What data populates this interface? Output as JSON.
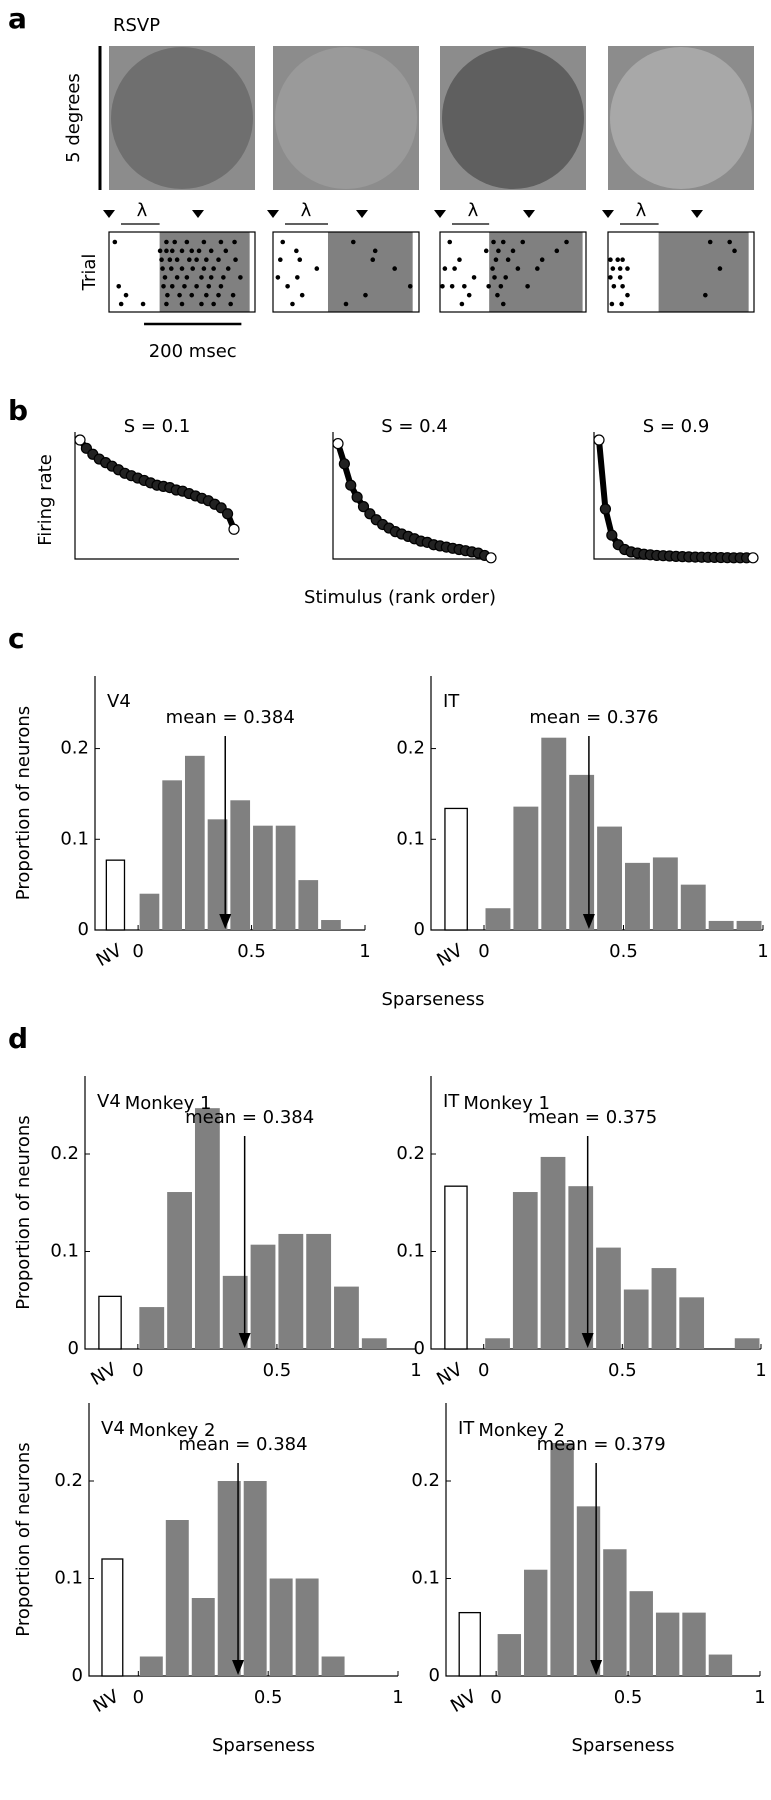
{
  "panel_labels": [
    "a",
    "b",
    "c",
    "d"
  ],
  "chart_data": [
    {
      "type": "raster",
      "title": "RSVP",
      "image_scale_label": "5 degrees",
      "ylabel": "Trial",
      "lambda_label": "λ",
      "scale_bar": 200,
      "scale_bar_label": "200 msec",
      "xlim": [
        0,
        300
      ],
      "rasters": [
        {
          "shade": [
            104,
            289
          ],
          "trials": [
            [
              12,
              118,
              135,
              160,
              195,
              230,
              258
            ],
            [
              105,
              118,
              130,
              150,
              170,
              185,
              210,
              240
            ],
            [
              108,
              125,
              140,
              165,
              180,
              200,
              225,
              260
            ],
            [
              110,
              128,
              150,
              172,
              195,
              215,
              245
            ],
            [
              115,
              140,
              160,
              190,
              210,
              235,
              270
            ],
            [
              20,
              112,
              130,
              155,
              180,
              205,
              230
            ],
            [
              35,
              120,
              145,
              170,
              200,
              225,
              255
            ],
            [
              25,
              70,
              118,
              150,
              190,
              215,
              250
            ]
          ]
        },
        {
          "shade": [
            113,
            287
          ],
          "trials": [
            [
              20,
              165
            ],
            [
              48,
              210
            ],
            [
              15,
              55,
              205
            ],
            [
              90,
              250
            ],
            [
              10,
              50
            ],
            [
              30,
              282
            ],
            [
              60,
              190
            ],
            [
              40,
              150
            ]
          ]
        },
        {
          "shade": [
            101,
            293
          ],
          "trials": [
            [
              20,
              110,
              130,
              170,
              260
            ],
            [
              95,
              120,
              150,
              240
            ],
            [
              40,
              115,
              140,
              210
            ],
            [
              10,
              30,
              108,
              160,
              200
            ],
            [
              70,
              112,
              135
            ],
            [
              5,
              25,
              50,
              100,
              125,
              180
            ],
            [
              60,
              118
            ],
            [
              45,
              130
            ]
          ]
        },
        {
          "shade": [
            104,
            289
          ],
          "trials": [
            [
              210,
              250
            ],
            [
              260
            ],
            [
              5,
              20,
              30
            ],
            [
              10,
              25,
              40,
              230
            ],
            [
              5,
              25
            ],
            [
              12,
              30
            ],
            [
              40,
              200
            ],
            [
              8,
              28
            ]
          ]
        }
      ]
    },
    {
      "type": "curves",
      "ylabel": "Firing rate",
      "xlabel": "Stimulus (rank order)",
      "ylim": [
        0,
        1
      ],
      "curves": [
        {
          "title": "S = 0.1",
          "values": [
            1.0,
            0.93,
            0.88,
            0.84,
            0.81,
            0.78,
            0.75,
            0.72,
            0.7,
            0.68,
            0.66,
            0.64,
            0.62,
            0.61,
            0.6,
            0.58,
            0.57,
            0.55,
            0.53,
            0.51,
            0.49,
            0.46,
            0.43,
            0.38,
            0.25
          ]
        },
        {
          "title": "S = 0.4",
          "values": [
            0.97,
            0.8,
            0.62,
            0.52,
            0.44,
            0.38,
            0.33,
            0.29,
            0.26,
            0.23,
            0.21,
            0.19,
            0.17,
            0.15,
            0.14,
            0.12,
            0.11,
            0.1,
            0.09,
            0.08,
            0.07,
            0.06,
            0.05,
            0.03,
            0.01
          ]
        },
        {
          "title": "S = 0.9",
          "values": [
            1.0,
            0.42,
            0.2,
            0.12,
            0.08,
            0.06,
            0.05,
            0.04,
            0.035,
            0.03,
            0.028,
            0.025,
            0.022,
            0.02,
            0.018,
            0.016,
            0.015,
            0.014,
            0.013,
            0.012,
            0.011,
            0.01,
            0.01,
            0.01,
            0.01
          ]
        }
      ]
    },
    {
      "type": "histogram",
      "title": "V4",
      "ylabel": "Proportion of neurons",
      "xlabel": "Sparseness",
      "color": "#808080",
      "bins": [
        0,
        0.1,
        0.2,
        0.3,
        0.4,
        0.5,
        0.6,
        0.7,
        0.8,
        0.9,
        1
      ],
      "values": [
        0.04,
        0.165,
        0.192,
        0.122,
        0.143,
        0.115,
        0.115,
        0.055,
        0.011,
        0
      ],
      "nv_value": 0.077,
      "nv_label": "NV",
      "mean": 0.384,
      "mean_label": "mean = 0.384",
      "xlim": [
        -0.19,
        1
      ],
      "ylim": [
        0,
        0.28
      ],
      "xticks": [
        0,
        0.5,
        1
      ],
      "yticks": [
        0,
        0.1,
        0.2
      ]
    },
    {
      "type": "histogram",
      "title": "IT",
      "color": "#808080",
      "bins": [
        0,
        0.1,
        0.2,
        0.3,
        0.4,
        0.5,
        0.6,
        0.7,
        0.8,
        0.9,
        1
      ],
      "values": [
        0.024,
        0.136,
        0.212,
        0.171,
        0.114,
        0.074,
        0.08,
        0.05,
        0.01,
        0.01
      ],
      "nv_value": 0.134,
      "nv_label": "NV",
      "mean": 0.376,
      "mean_label": "mean = 0.376",
      "xlim": [
        -0.19,
        1
      ],
      "ylim": [
        0,
        0.28
      ],
      "xticks": [
        0,
        0.5,
        1
      ],
      "yticks": [
        0,
        0.1,
        0.2
      ]
    },
    {
      "type": "histogram",
      "title": "V4",
      "subtitle": "Monkey 1",
      "ylabel": "Proportion of neurons",
      "color": "#808080",
      "bins": [
        0,
        0.1,
        0.2,
        0.3,
        0.4,
        0.5,
        0.6,
        0.7,
        0.8,
        0.9,
        1
      ],
      "values": [
        0.043,
        0.161,
        0.247,
        0.075,
        0.107,
        0.118,
        0.118,
        0.064,
        0.011,
        0
      ],
      "nv_value": 0.054,
      "nv_label": "NV",
      "mean": 0.384,
      "mean_label": "mean = 0.384",
      "xlim": [
        -0.19,
        1
      ],
      "ylim": [
        0,
        0.28
      ],
      "xticks": [
        0,
        0.5,
        1
      ],
      "yticks": [
        0,
        0.1,
        0.2
      ]
    },
    {
      "type": "histogram",
      "title": "IT",
      "subtitle": "Monkey 1",
      "color": "#808080",
      "bins": [
        0,
        0.1,
        0.2,
        0.3,
        0.4,
        0.5,
        0.6,
        0.7,
        0.8,
        0.9,
        1
      ],
      "values": [
        0.011,
        0.161,
        0.197,
        0.167,
        0.104,
        0.061,
        0.083,
        0.053,
        0,
        0.011
      ],
      "nv_value": 0.167,
      "nv_label": "NV",
      "mean": 0.375,
      "mean_label": "mean = 0.375",
      "xlim": [
        -0.19,
        1
      ],
      "ylim": [
        0,
        0.28
      ],
      "xticks": [
        0,
        0.5,
        1
      ],
      "yticks": [
        0,
        0.1,
        0.2
      ]
    },
    {
      "type": "histogram",
      "title": "V4",
      "subtitle": "Monkey 2",
      "ylabel": "Proportion of neurons",
      "xlabel": "Sparseness",
      "color": "#808080",
      "bins": [
        0,
        0.1,
        0.2,
        0.3,
        0.4,
        0.5,
        0.6,
        0.7,
        0.8,
        0.9,
        1
      ],
      "values": [
        0.02,
        0.16,
        0.08,
        0.2,
        0.2,
        0.1,
        0.1,
        0.02,
        0,
        0
      ],
      "nv_value": 0.12,
      "nv_label": "NV",
      "mean": 0.384,
      "mean_label": "mean = 0.384",
      "xlim": [
        -0.19,
        1
      ],
      "ylim": [
        0,
        0.28
      ],
      "xticks": [
        0,
        0.5,
        1
      ],
      "yticks": [
        0,
        0.1,
        0.2
      ]
    },
    {
      "type": "histogram",
      "title": "IT",
      "subtitle": "Monkey 2",
      "xlabel": "Sparseness",
      "color": "#808080",
      "bins": [
        0,
        0.1,
        0.2,
        0.3,
        0.4,
        0.5,
        0.6,
        0.7,
        0.8,
        0.9,
        1
      ],
      "values": [
        0.043,
        0.109,
        0.239,
        0.174,
        0.13,
        0.087,
        0.065,
        0.065,
        0.022,
        0
      ],
      "nv_value": 0.065,
      "nv_label": "NV",
      "mean": 0.379,
      "mean_label": "mean = 0.379",
      "xlim": [
        -0.19,
        1
      ],
      "ylim": [
        0,
        0.28
      ],
      "xticks": [
        0,
        0.5,
        1
      ],
      "yticks": [
        0,
        0.1,
        0.2
      ]
    }
  ]
}
